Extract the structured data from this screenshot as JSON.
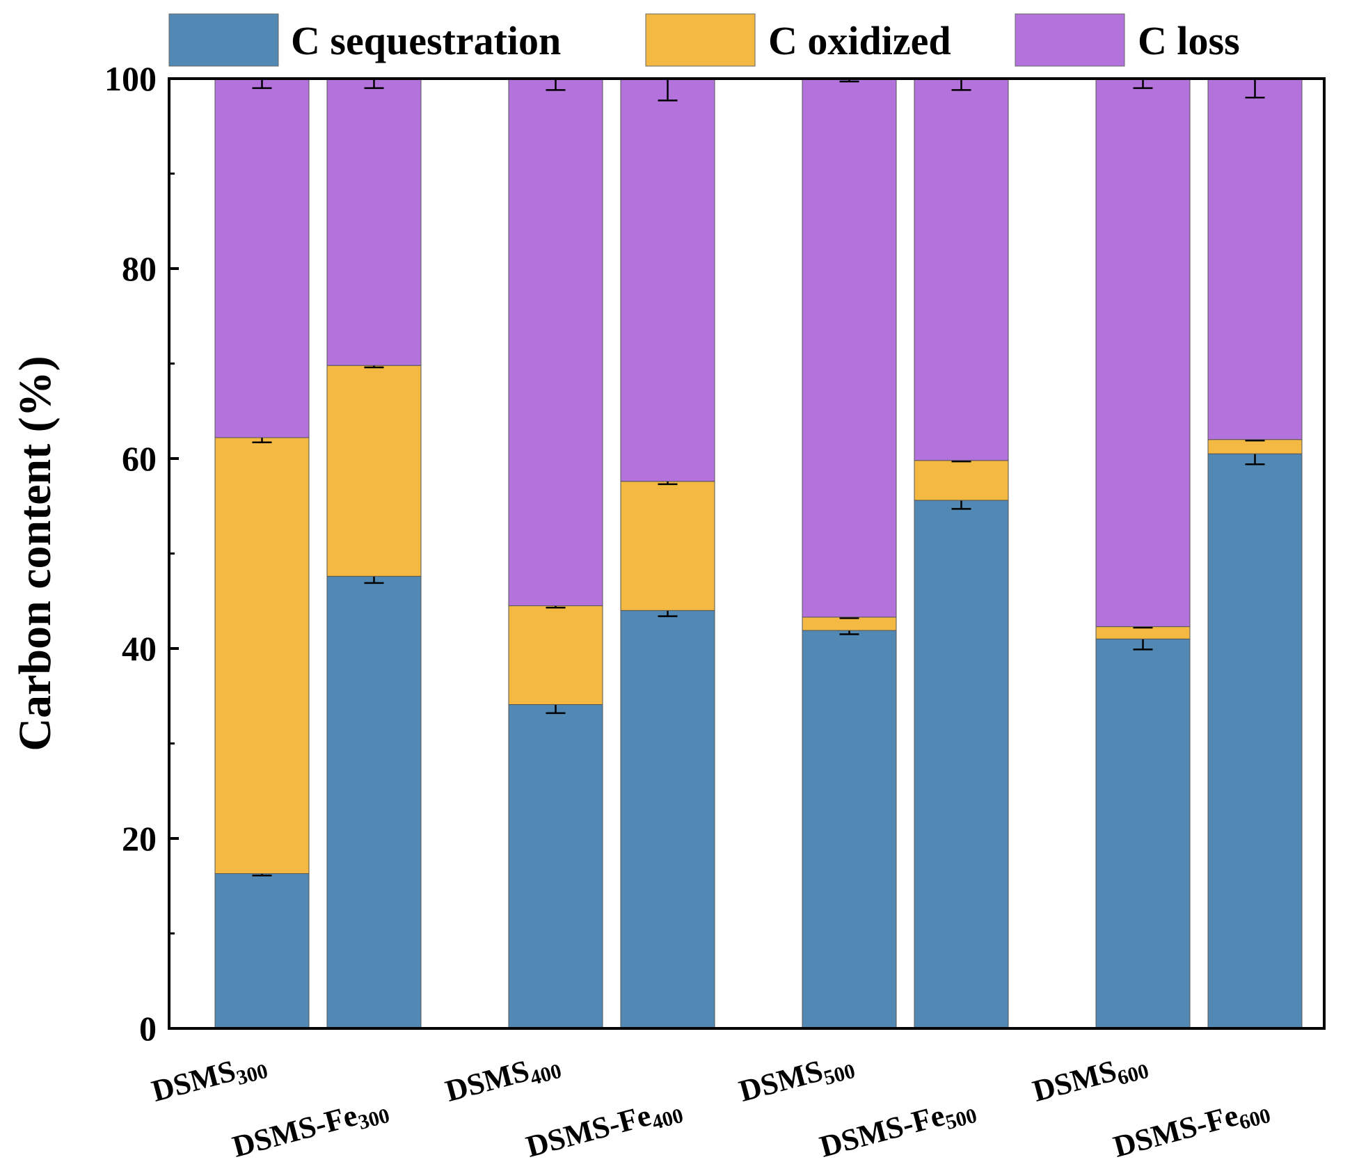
{
  "chart_data": {
    "type": "bar",
    "stacked": true,
    "title": "",
    "xlabel": "",
    "ylabel": "Carbon content (%)",
    "ylim": [
      0,
      100
    ],
    "yticks": [
      0,
      20,
      40,
      60,
      80,
      100
    ],
    "grid": false,
    "legend_position": "top",
    "categories": [
      {
        "base": "DSMS",
        "sub": "300"
      },
      {
        "base": "DSMS-Fe",
        "sub": "300"
      },
      {
        "base": "DSMS",
        "sub": "400"
      },
      {
        "base": "DSMS-Fe",
        "sub": "400"
      },
      {
        "base": "DSMS",
        "sub": "500"
      },
      {
        "base": "DSMS-Fe",
        "sub": "500"
      },
      {
        "base": "DSMS",
        "sub": "600"
      },
      {
        "base": "DSMS-Fe",
        "sub": "600"
      }
    ],
    "series": [
      {
        "name": "C sequestration",
        "color": "#5189b4",
        "values": [
          16.3,
          47.6,
          34.1,
          44.0,
          41.9,
          55.6,
          41.0,
          60.5
        ],
        "errors": [
          0.2,
          0.7,
          0.9,
          0.6,
          0.4,
          0.9,
          1.1,
          1.1
        ]
      },
      {
        "name": "C oxidized",
        "color": "#f4b942",
        "values": [
          45.9,
          22.2,
          10.4,
          13.6,
          1.4,
          4.2,
          1.3,
          1.5
        ],
        "errors": [
          0.5,
          0.2,
          0.2,
          0.3,
          0.1,
          0.1,
          0.1,
          0.1
        ]
      },
      {
        "name": "C loss",
        "color": "#b372dc",
        "values": [
          37.8,
          30.2,
          55.5,
          42.4,
          56.7,
          40.2,
          57.7,
          38.0
        ],
        "errors": [
          1.0,
          1.0,
          1.2,
          2.3,
          0.3,
          1.2,
          1.0,
          2.0
        ]
      }
    ]
  }
}
